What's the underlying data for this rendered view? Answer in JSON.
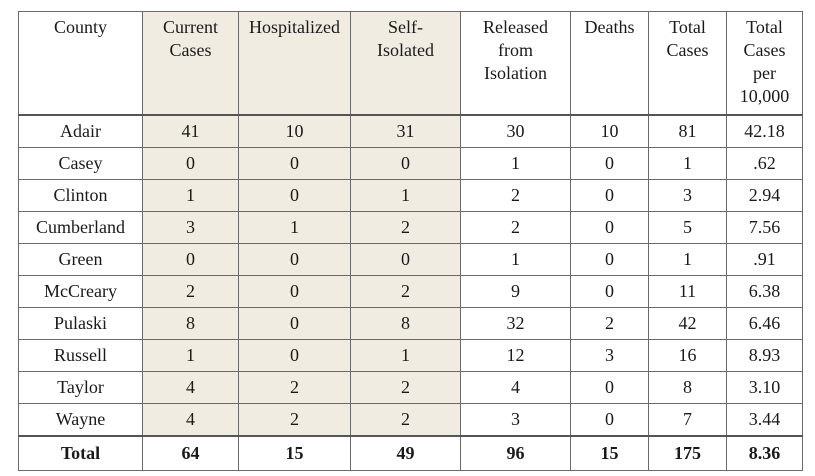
{
  "table": {
    "headers": [
      [
        "County"
      ],
      [
        "Current",
        "Cases"
      ],
      [
        "Hospitalized"
      ],
      [
        "Self-",
        "Isolated"
      ],
      [
        "Released",
        "from",
        "Isolation"
      ],
      [
        "Deaths"
      ],
      [
        "Total",
        "Cases"
      ],
      [
        "Total",
        "Cases",
        "per",
        "10,000"
      ]
    ],
    "shaded_columns": [
      1,
      2,
      3
    ],
    "shade_color": "#f0ece2",
    "rows": [
      [
        "Adair",
        "41",
        "10",
        "31",
        "30",
        "10",
        "81",
        "42.18"
      ],
      [
        "Casey",
        "0",
        "0",
        "0",
        "1",
        "0",
        "1",
        ".62"
      ],
      [
        "Clinton",
        "1",
        "0",
        "1",
        "2",
        "0",
        "3",
        "2.94"
      ],
      [
        "Cumberland",
        "3",
        "1",
        "2",
        "2",
        "0",
        "5",
        "7.56"
      ],
      [
        "Green",
        "0",
        "0",
        "0",
        "1",
        "0",
        "1",
        ".91"
      ],
      [
        "McCreary",
        "2",
        "0",
        "2",
        "9",
        "0",
        "11",
        "6.38"
      ],
      [
        "Pulaski",
        "8",
        "0",
        "8",
        "32",
        "2",
        "42",
        "6.46"
      ],
      [
        "Russell",
        "1",
        "0",
        "1",
        "12",
        "3",
        "16",
        "8.93"
      ],
      [
        "Taylor",
        "4",
        "2",
        "2",
        "4",
        "0",
        "8",
        "3.10"
      ],
      [
        "Wayne",
        "4",
        "2",
        "2",
        "3",
        "0",
        "7",
        "3.44"
      ]
    ],
    "total": [
      "Total",
      "64",
      "15",
      "49",
      "96",
      "15",
      "175",
      "8.36"
    ]
  }
}
